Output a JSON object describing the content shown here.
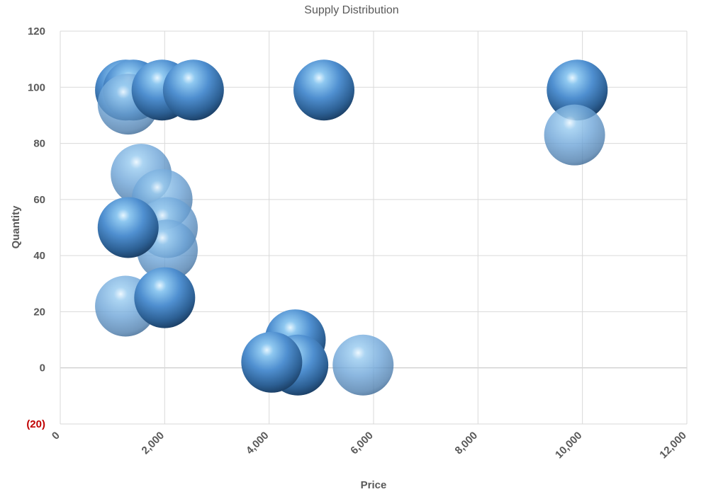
{
  "chart_data": {
    "type": "bubble",
    "title": "Supply Distribution",
    "xlabel": "Price",
    "ylabel": "Quantity",
    "xlim": [
      0,
      12000
    ],
    "ylim": [
      -20,
      120
    ],
    "x_ticks": [
      "0",
      "2,000",
      "4,000",
      "6,000",
      "8,000",
      "10,000",
      "12,000"
    ],
    "x_tick_values": [
      0,
      2000,
      4000,
      6000,
      8000,
      10000,
      12000
    ],
    "y_ticks": [
      "(20)",
      "0",
      "20",
      "40",
      "60",
      "80",
      "100",
      "120"
    ],
    "y_tick_values": [
      -20,
      0,
      20,
      40,
      60,
      80,
      100,
      120
    ],
    "negative_tick_color": "#c00000",
    "grid": true,
    "bubble_color": "#5b9bd5",
    "points": [
      {
        "x": 1250,
        "y": 99,
        "shade": "dark"
      },
      {
        "x": 1400,
        "y": 99,
        "shade": "dark"
      },
      {
        "x": 1300,
        "y": 94,
        "shade": "light"
      },
      {
        "x": 1950,
        "y": 99,
        "shade": "dark"
      },
      {
        "x": 2550,
        "y": 99,
        "shade": "dark"
      },
      {
        "x": 5050,
        "y": 99,
        "shade": "dark"
      },
      {
        "x": 9900,
        "y": 99,
        "shade": "dark"
      },
      {
        "x": 9850,
        "y": 83,
        "shade": "light"
      },
      {
        "x": 1550,
        "y": 69,
        "shade": "light"
      },
      {
        "x": 1950,
        "y": 60,
        "shade": "light"
      },
      {
        "x": 2050,
        "y": 50,
        "shade": "light"
      },
      {
        "x": 2050,
        "y": 42,
        "shade": "light"
      },
      {
        "x": 1300,
        "y": 50,
        "shade": "dark"
      },
      {
        "x": 1250,
        "y": 22,
        "shade": "light"
      },
      {
        "x": 2000,
        "y": 25,
        "shade": "dark"
      },
      {
        "x": 4500,
        "y": 10,
        "shade": "dark"
      },
      {
        "x": 4550,
        "y": 1,
        "shade": "dark"
      },
      {
        "x": 4050,
        "y": 2,
        "shade": "dark"
      },
      {
        "x": 5800,
        "y": 1,
        "shade": "light"
      }
    ]
  }
}
